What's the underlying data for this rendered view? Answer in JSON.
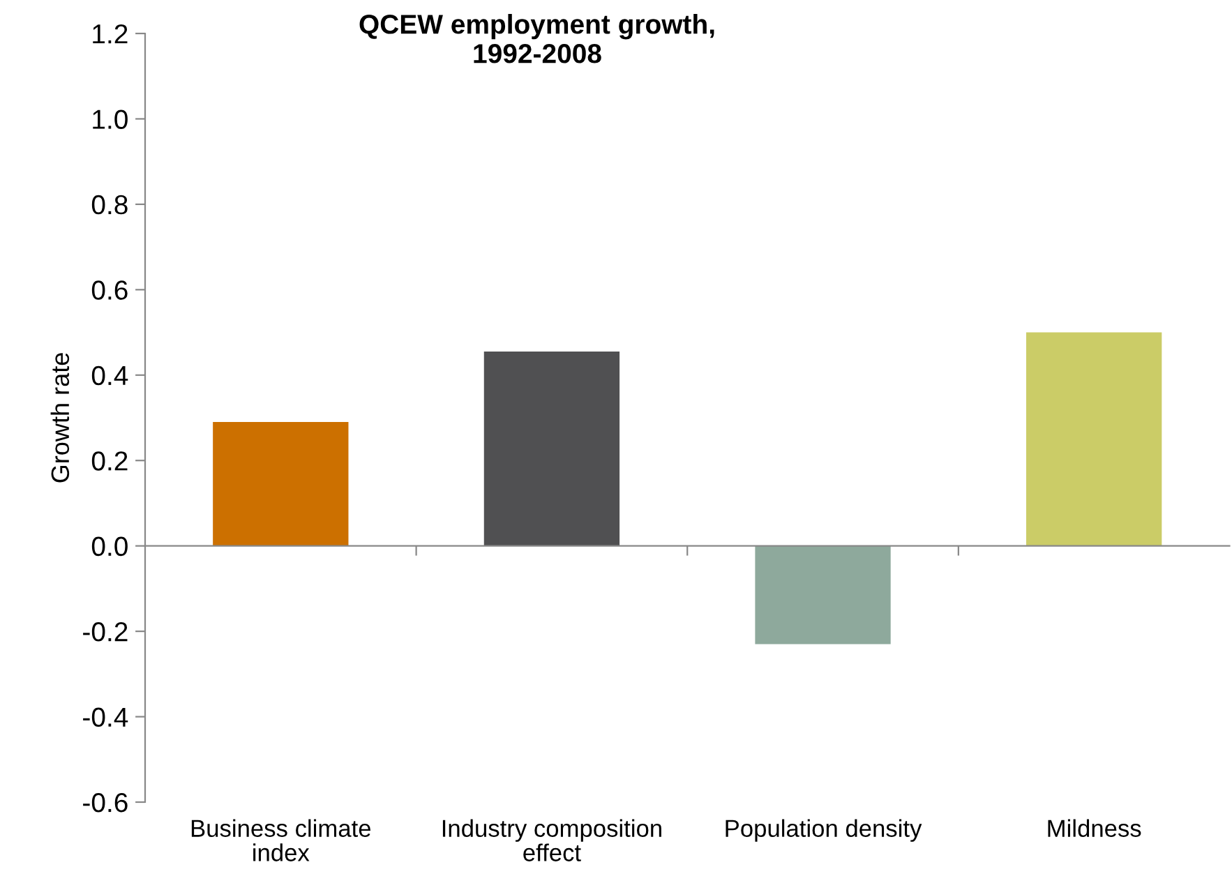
{
  "chart_data": {
    "type": "bar",
    "title": "QCEW employment growth,\n1992-2008",
    "ylabel": "Growth rate",
    "categories": [
      "Business climate\nindex",
      "Industry composition\neffect",
      "Population density",
      "Mildness"
    ],
    "values": [
      0.29,
      0.455,
      -0.23,
      0.5
    ],
    "colors": [
      "#cc7000",
      "#505052",
      "#8ea99c",
      "#cbcc67"
    ],
    "ylim": [
      -0.6,
      1.2
    ],
    "yticks": [
      {
        "value": -0.6,
        "label": "-0.6"
      },
      {
        "value": -0.4,
        "label": "-0.4"
      },
      {
        "value": -0.2,
        "label": "-0.2"
      },
      {
        "value": 0,
        "label": "0.0"
      },
      {
        "value": 0.2,
        "label": "0.2"
      },
      {
        "value": 0.4,
        "label": "0.4"
      },
      {
        "value": 0.6,
        "label": "0.6"
      },
      {
        "value": 0.8,
        "label": "0.8"
      },
      {
        "value": 1.0,
        "label": "1.0"
      },
      {
        "value": 1.2,
        "label": "1.2"
      }
    ],
    "legend": false
  }
}
